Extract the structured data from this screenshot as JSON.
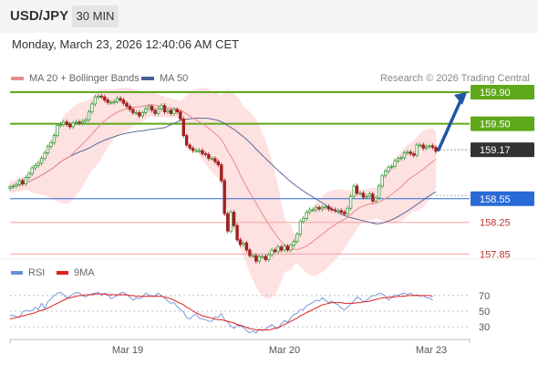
{
  "header": {
    "symbol": "USD/JPY",
    "timeframe": "30 MIN"
  },
  "datetime": "Monday, March 23, 2026 12:40:06 AM CET",
  "legend": {
    "ma20_label": "MA 20 + Bollinger Bands",
    "ma50_label": "MA 50",
    "credit": "Research © 2026 Trading Central",
    "rsi_label": "RSI",
    "ma9_label": "9MA"
  },
  "colors": {
    "up": "#3f9b3f",
    "down": "#a32020",
    "ma20": "#e88c8c",
    "ma50": "#4a5f94",
    "band": "#fdd7d7",
    "resistance": "#5fa81a",
    "support": "#2a6ad6",
    "pivot_red": "#f4a4a4",
    "current": "#333333",
    "arrow": "#2255a4",
    "rsi": "#6a90d8",
    "ma9": "#e02020"
  },
  "chart_data": {
    "type": "candlestick",
    "ylim": [
      157.6,
      160.2
    ],
    "xlabels": [
      "Mar 19",
      "Mar 20",
      "Mar 23"
    ],
    "levels": [
      {
        "value": 159.9,
        "label": "159.90",
        "kind": "resistance"
      },
      {
        "value": 159.5,
        "label": "159.50",
        "kind": "resistance"
      },
      {
        "value": 159.17,
        "label": "159.17",
        "kind": "current"
      },
      {
        "value": 158.55,
        "label": "158.55",
        "kind": "support"
      },
      {
        "value": 158.25,
        "label": "158.25",
        "kind": "pivot"
      },
      {
        "value": 157.85,
        "label": "157.85",
        "kind": "pivot"
      }
    ],
    "arrow": {
      "from": 159.17,
      "to": 159.9
    },
    "close": [
      158.7,
      158.71,
      158.73,
      158.78,
      158.74,
      158.82,
      158.87,
      158.94,
      158.97,
      159.0,
      159.06,
      159.13,
      159.21,
      159.26,
      159.35,
      159.48,
      159.49,
      159.52,
      159.49,
      159.46,
      159.51,
      159.52,
      159.51,
      159.53,
      159.55,
      159.65,
      159.75,
      159.84,
      159.85,
      159.84,
      159.8,
      159.77,
      159.77,
      159.78,
      159.82,
      159.8,
      159.76,
      159.72,
      159.68,
      159.64,
      159.64,
      159.6,
      159.64,
      159.69,
      159.72,
      159.67,
      159.63,
      159.69,
      159.73,
      159.65,
      159.67,
      159.63,
      159.68,
      159.65,
      159.56,
      159.35,
      159.23,
      159.19,
      159.16,
      159.16,
      159.16,
      159.12,
      159.11,
      159.06,
      159.06,
      159.02,
      158.98,
      158.78,
      158.36,
      158.14,
      158.38,
      158.21,
      158.03,
      157.97,
      157.99,
      157.9,
      157.83,
      157.83,
      157.76,
      157.82,
      157.82,
      157.78,
      157.84,
      157.9,
      157.88,
      157.94,
      157.9,
      157.95,
      157.9,
      157.96,
      158.01,
      158.1,
      158.26,
      158.3,
      158.38,
      158.41,
      158.41,
      158.44,
      158.42,
      158.44,
      158.45,
      158.42,
      158.41,
      158.4,
      158.4,
      158.38,
      158.36,
      158.43,
      158.58,
      158.71,
      158.62,
      158.62,
      158.57,
      158.58,
      158.61,
      158.52,
      158.56,
      158.71,
      158.84,
      158.9,
      158.95,
      158.96,
      159.03,
      159.06,
      159.07,
      159.13,
      159.14,
      159.12,
      159.1,
      159.23,
      159.23,
      159.19,
      159.21,
      159.22,
      159.2,
      159.15
    ]
  },
  "rsi_data": {
    "ticks": [
      "70",
      "50",
      "30"
    ],
    "ylim": [
      15,
      85
    ],
    "rsi": [
      44,
      45,
      43,
      42,
      49,
      51,
      50,
      51,
      55,
      52,
      60,
      53,
      62,
      66,
      70,
      73,
      74,
      71,
      67,
      69,
      72,
      74,
      73,
      70,
      68,
      71,
      72,
      73,
      74,
      70,
      73,
      71,
      66,
      68,
      70,
      73,
      74,
      71,
      68,
      64,
      67,
      66,
      68,
      73,
      71,
      69,
      70,
      73,
      70,
      67,
      63,
      60,
      61,
      56,
      52,
      49,
      42,
      40,
      44,
      46,
      41,
      40,
      39,
      37,
      37,
      43,
      42,
      47,
      39,
      36,
      31,
      28,
      32,
      31,
      29,
      25,
      22,
      25,
      22,
      27,
      25,
      27,
      30,
      33,
      29,
      28,
      34,
      38,
      36,
      41,
      46,
      47,
      52,
      52,
      57,
      59,
      61,
      64,
      63,
      67,
      64,
      61,
      63,
      60,
      58,
      54,
      52,
      55,
      59,
      63,
      68,
      66,
      62,
      64,
      67,
      70,
      70,
      73,
      72,
      69,
      64,
      68,
      71,
      70,
      72,
      73,
      71,
      73,
      70,
      71,
      69,
      70,
      67,
      67,
      64
    ],
    "ma9": [
      40,
      41,
      42,
      43,
      44,
      45,
      46,
      47,
      48,
      50,
      51,
      52,
      54,
      56,
      58,
      60,
      62,
      64,
      66,
      67,
      68,
      69,
      70,
      70,
      71,
      71,
      71,
      72,
      72,
      72,
      72,
      71,
      71,
      71,
      71,
      71,
      71,
      71,
      70,
      70,
      69,
      69,
      69,
      69,
      69,
      69,
      69,
      69,
      69,
      68,
      67,
      66,
      64,
      62,
      60,
      58,
      55,
      53,
      50,
      48,
      46,
      44,
      43,
      42,
      41,
      40,
      39,
      39,
      38,
      37,
      36,
      35,
      33,
      32,
      31,
      29,
      28,
      27,
      26,
      26,
      26,
      26,
      26,
      27,
      28,
      29,
      31,
      33,
      35,
      37,
      39,
      41,
      44,
      46,
      48,
      50,
      52,
      54,
      56,
      58,
      59,
      60,
      61,
      61,
      61,
      61,
      60,
      60,
      60,
      60,
      61,
      61,
      62,
      62,
      63,
      64,
      65,
      66,
      67,
      67,
      68,
      68,
      68,
      69,
      69,
      69,
      70,
      70,
      70,
      70,
      70,
      70,
      70,
      70,
      69
    ]
  }
}
